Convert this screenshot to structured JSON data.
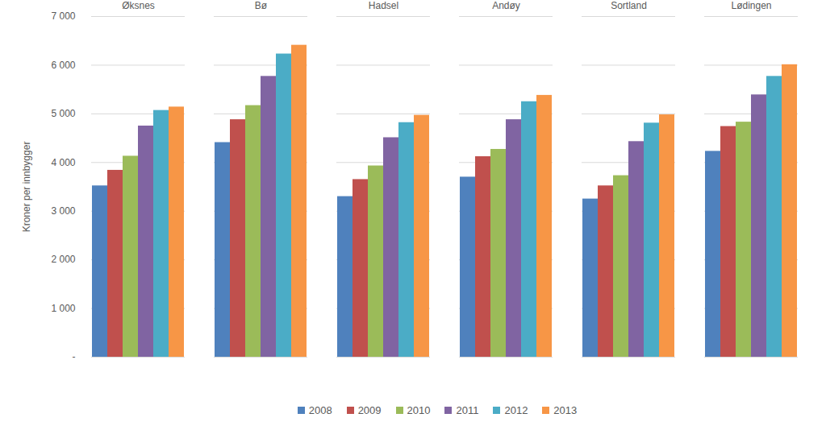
{
  "chart_data": {
    "type": "bar",
    "y_label": "Kroner per innbygger",
    "categories": [
      "Øksnes",
      "Bø",
      "Hadsel",
      "Andøy",
      "Sortland",
      "Lødingen"
    ],
    "series": [
      {
        "name": "2008",
        "color": "#4f81bd",
        "values": [
          3520,
          4410,
          3300,
          3700,
          3250,
          4230
        ]
      },
      {
        "name": "2009",
        "color": "#c0504d",
        "values": [
          3840,
          4880,
          3650,
          4120,
          3520,
          4740
        ]
      },
      {
        "name": "2010",
        "color": "#9bbb59",
        "values": [
          4130,
          5170,
          3930,
          4270,
          3730,
          4830
        ]
      },
      {
        "name": "2011",
        "color": "#8064a2",
        "values": [
          4750,
          5770,
          4510,
          4880,
          4430,
          5390
        ]
      },
      {
        "name": "2012",
        "color": "#4bacc6",
        "values": [
          5070,
          6230,
          4820,
          5250,
          4810,
          5770
        ]
      },
      {
        "name": "2013",
        "color": "#f79646",
        "values": [
          5140,
          6410,
          4970,
          5380,
          4980,
          6010
        ]
      }
    ],
    "ylim": [
      0,
      7000
    ],
    "yticks": [
      {
        "value": 0,
        "label": "-"
      },
      {
        "value": 1000,
        "label": "1 000"
      },
      {
        "value": 2000,
        "label": "2 000"
      },
      {
        "value": 3000,
        "label": "3 000"
      },
      {
        "value": 4000,
        "label": "4 000"
      },
      {
        "value": 5000,
        "label": "5 000"
      },
      {
        "value": 6000,
        "label": "6 000"
      },
      {
        "value": 7000,
        "label": "7 000"
      }
    ],
    "grid": true,
    "legend": "bottom"
  }
}
